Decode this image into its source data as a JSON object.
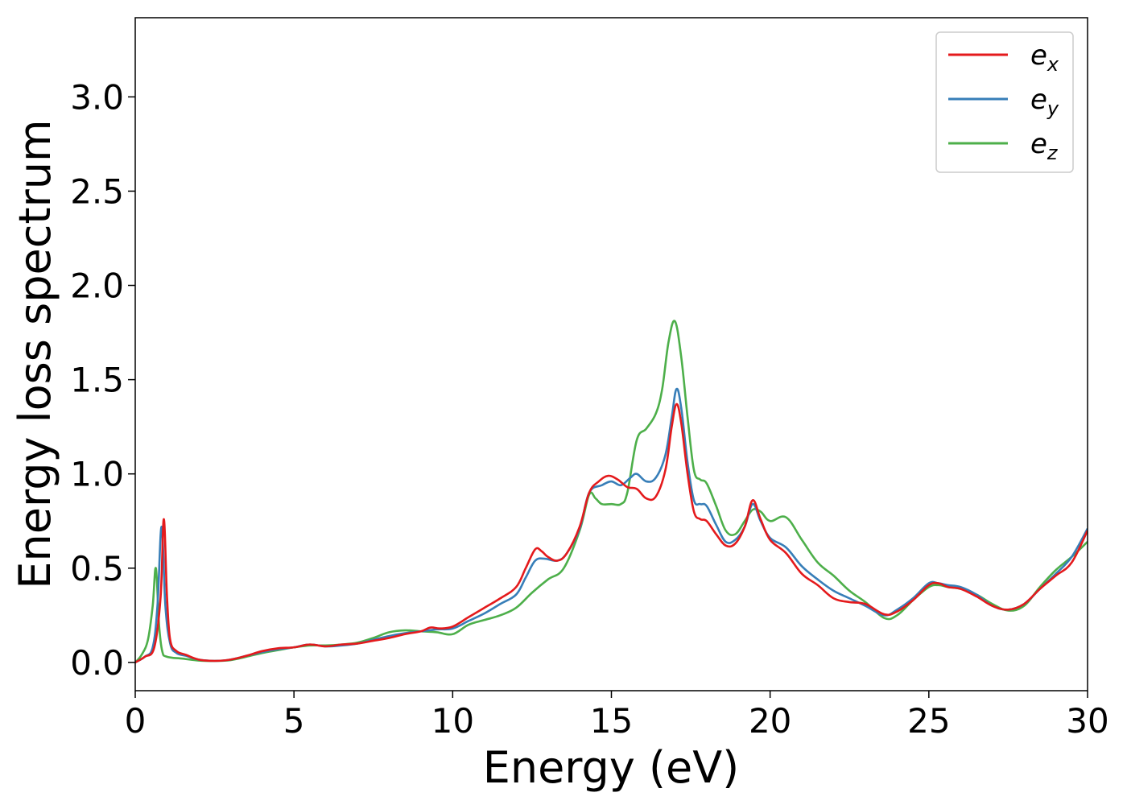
{
  "chart_data": {
    "type": "line",
    "xlabel": "Energy (eV)",
    "ylabel": "Energy loss spectrum",
    "xlim": [
      0,
      30
    ],
    "ylim": [
      -0.15,
      3.42
    ],
    "xticks": [
      0,
      5,
      10,
      15,
      20,
      25,
      30
    ],
    "xtick_labels": [
      "0",
      "5",
      "10",
      "15",
      "20",
      "25",
      "30"
    ],
    "yticks": [
      0.0,
      0.5,
      1.0,
      1.5,
      2.0,
      2.5,
      3.0
    ],
    "ytick_labels": [
      "0.0",
      "0.5",
      "1.0",
      "1.5",
      "2.0",
      "2.5",
      "3.0"
    ],
    "grid": false,
    "legend_position": "top-right",
    "series": [
      {
        "name": "e",
        "subscript": "x",
        "color": "#e41a1c",
        "points": [
          [
            0,
            0
          ],
          [
            0.3,
            0.03
          ],
          [
            0.6,
            0.08
          ],
          [
            0.8,
            0.35
          ],
          [
            0.9,
            0.76
          ],
          [
            1.0,
            0.35
          ],
          [
            1.1,
            0.12
          ],
          [
            1.3,
            0.06
          ],
          [
            1.6,
            0.04
          ],
          [
            2,
            0.015
          ],
          [
            2.5,
            0.008
          ],
          [
            3,
            0.015
          ],
          [
            3.5,
            0.035
          ],
          [
            4,
            0.06
          ],
          [
            4.5,
            0.075
          ],
          [
            5,
            0.08
          ],
          [
            5.5,
            0.095
          ],
          [
            6,
            0.085
          ],
          [
            6.5,
            0.095
          ],
          [
            7,
            0.1
          ],
          [
            7.5,
            0.115
          ],
          [
            8,
            0.13
          ],
          [
            8.5,
            0.15
          ],
          [
            9,
            0.165
          ],
          [
            9.3,
            0.185
          ],
          [
            9.6,
            0.18
          ],
          [
            10,
            0.19
          ],
          [
            10.5,
            0.24
          ],
          [
            11,
            0.29
          ],
          [
            11.5,
            0.34
          ],
          [
            12,
            0.4
          ],
          [
            12.3,
            0.5
          ],
          [
            12.6,
            0.6
          ],
          [
            12.8,
            0.59
          ],
          [
            13,
            0.56
          ],
          [
            13.3,
            0.54
          ],
          [
            13.6,
            0.58
          ],
          [
            14,
            0.72
          ],
          [
            14.3,
            0.9
          ],
          [
            14.6,
            0.96
          ],
          [
            14.9,
            0.99
          ],
          [
            15.2,
            0.97
          ],
          [
            15.5,
            0.93
          ],
          [
            15.8,
            0.92
          ],
          [
            16.1,
            0.87
          ],
          [
            16.4,
            0.88
          ],
          [
            16.7,
            1.02
          ],
          [
            16.9,
            1.25
          ],
          [
            17.05,
            1.37
          ],
          [
            17.2,
            1.27
          ],
          [
            17.4,
            1.0
          ],
          [
            17.6,
            0.8
          ],
          [
            17.8,
            0.76
          ],
          [
            18.0,
            0.75
          ],
          [
            18.3,
            0.68
          ],
          [
            18.6,
            0.62
          ],
          [
            18.9,
            0.63
          ],
          [
            19.2,
            0.72
          ],
          [
            19.45,
            0.86
          ],
          [
            19.7,
            0.76
          ],
          [
            20,
            0.65
          ],
          [
            20.5,
            0.58
          ],
          [
            21,
            0.47
          ],
          [
            21.5,
            0.41
          ],
          [
            22,
            0.34
          ],
          [
            22.5,
            0.32
          ],
          [
            23,
            0.31
          ],
          [
            23.6,
            0.255
          ],
          [
            24,
            0.27
          ],
          [
            24.5,
            0.33
          ],
          [
            25,
            0.41
          ],
          [
            25.3,
            0.42
          ],
          [
            25.6,
            0.4
          ],
          [
            26,
            0.39
          ],
          [
            26.5,
            0.35
          ],
          [
            27,
            0.3
          ],
          [
            27.5,
            0.28
          ],
          [
            28,
            0.31
          ],
          [
            28.5,
            0.39
          ],
          [
            29,
            0.46
          ],
          [
            29.5,
            0.53
          ],
          [
            30,
            0.7
          ]
        ]
      },
      {
        "name": "e",
        "subscript": "y",
        "color": "#377eb8",
        "points": [
          [
            0,
            0
          ],
          [
            0.3,
            0.03
          ],
          [
            0.55,
            0.08
          ],
          [
            0.7,
            0.3
          ],
          [
            0.83,
            0.72
          ],
          [
            0.95,
            0.3
          ],
          [
            1.1,
            0.1
          ],
          [
            1.3,
            0.05
          ],
          [
            1.6,
            0.035
          ],
          [
            2,
            0.015
          ],
          [
            2.5,
            0.008
          ],
          [
            3,
            0.015
          ],
          [
            3.5,
            0.035
          ],
          [
            4,
            0.055
          ],
          [
            4.5,
            0.07
          ],
          [
            5,
            0.08
          ],
          [
            5.5,
            0.095
          ],
          [
            6,
            0.085
          ],
          [
            6.5,
            0.09
          ],
          [
            7,
            0.1
          ],
          [
            7.5,
            0.12
          ],
          [
            8,
            0.14
          ],
          [
            8.5,
            0.155
          ],
          [
            9,
            0.165
          ],
          [
            9.5,
            0.175
          ],
          [
            10,
            0.18
          ],
          [
            10.5,
            0.22
          ],
          [
            11,
            0.26
          ],
          [
            11.5,
            0.31
          ],
          [
            12,
            0.36
          ],
          [
            12.3,
            0.45
          ],
          [
            12.6,
            0.54
          ],
          [
            12.9,
            0.55
          ],
          [
            13.3,
            0.54
          ],
          [
            13.6,
            0.58
          ],
          [
            14,
            0.71
          ],
          [
            14.3,
            0.9
          ],
          [
            14.7,
            0.94
          ],
          [
            15,
            0.96
          ],
          [
            15.3,
            0.94
          ],
          [
            15.6,
            0.98
          ],
          [
            15.8,
            1.0
          ],
          [
            16.1,
            0.96
          ],
          [
            16.4,
            0.98
          ],
          [
            16.7,
            1.1
          ],
          [
            16.9,
            1.3
          ],
          [
            17.05,
            1.45
          ],
          [
            17.2,
            1.35
          ],
          [
            17.4,
            1.06
          ],
          [
            17.6,
            0.86
          ],
          [
            17.8,
            0.84
          ],
          [
            18.0,
            0.83
          ],
          [
            18.3,
            0.73
          ],
          [
            18.6,
            0.64
          ],
          [
            18.9,
            0.65
          ],
          [
            19.2,
            0.72
          ],
          [
            19.45,
            0.84
          ],
          [
            19.7,
            0.75
          ],
          [
            20,
            0.66
          ],
          [
            20.5,
            0.61
          ],
          [
            21,
            0.51
          ],
          [
            21.5,
            0.44
          ],
          [
            22,
            0.38
          ],
          [
            22.5,
            0.34
          ],
          [
            23,
            0.3
          ],
          [
            23.6,
            0.25
          ],
          [
            24,
            0.28
          ],
          [
            24.5,
            0.34
          ],
          [
            25,
            0.42
          ],
          [
            25.3,
            0.42
          ],
          [
            25.6,
            0.41
          ],
          [
            26,
            0.4
          ],
          [
            26.5,
            0.36
          ],
          [
            27,
            0.3
          ],
          [
            27.5,
            0.28
          ],
          [
            28,
            0.31
          ],
          [
            28.5,
            0.39
          ],
          [
            29,
            0.47
          ],
          [
            29.5,
            0.56
          ],
          [
            30,
            0.71
          ]
        ]
      },
      {
        "name": "e",
        "subscript": "z",
        "color": "#4daf4a",
        "points": [
          [
            0,
            0
          ],
          [
            0.2,
            0.04
          ],
          [
            0.4,
            0.12
          ],
          [
            0.55,
            0.3
          ],
          [
            0.65,
            0.5
          ],
          [
            0.75,
            0.2
          ],
          [
            0.85,
            0.06
          ],
          [
            1.0,
            0.03
          ],
          [
            1.5,
            0.02
          ],
          [
            2,
            0.01
          ],
          [
            2.5,
            0.008
          ],
          [
            3,
            0.012
          ],
          [
            3.5,
            0.03
          ],
          [
            4,
            0.05
          ],
          [
            4.5,
            0.065
          ],
          [
            5,
            0.08
          ],
          [
            5.5,
            0.09
          ],
          [
            6,
            0.09
          ],
          [
            6.5,
            0.095
          ],
          [
            7,
            0.105
          ],
          [
            7.5,
            0.13
          ],
          [
            8,
            0.16
          ],
          [
            8.5,
            0.17
          ],
          [
            9,
            0.165
          ],
          [
            9.5,
            0.16
          ],
          [
            10,
            0.15
          ],
          [
            10.5,
            0.2
          ],
          [
            11,
            0.225
          ],
          [
            11.5,
            0.25
          ],
          [
            12,
            0.29
          ],
          [
            12.5,
            0.37
          ],
          [
            13,
            0.44
          ],
          [
            13.5,
            0.5
          ],
          [
            14,
            0.7
          ],
          [
            14.3,
            0.89
          ],
          [
            14.5,
            0.87
          ],
          [
            14.7,
            0.84
          ],
          [
            15,
            0.84
          ],
          [
            15.3,
            0.84
          ],
          [
            15.5,
            0.9
          ],
          [
            15.8,
            1.18
          ],
          [
            16.1,
            1.24
          ],
          [
            16.4,
            1.32
          ],
          [
            16.6,
            1.45
          ],
          [
            16.8,
            1.7
          ],
          [
            17.0,
            1.81
          ],
          [
            17.2,
            1.62
          ],
          [
            17.4,
            1.3
          ],
          [
            17.6,
            1.02
          ],
          [
            17.8,
            0.97
          ],
          [
            18.0,
            0.95
          ],
          [
            18.3,
            0.83
          ],
          [
            18.6,
            0.7
          ],
          [
            18.9,
            0.68
          ],
          [
            19.2,
            0.75
          ],
          [
            19.45,
            0.81
          ],
          [
            19.7,
            0.8
          ],
          [
            20,
            0.75
          ],
          [
            20.5,
            0.77
          ],
          [
            21,
            0.65
          ],
          [
            21.5,
            0.53
          ],
          [
            22,
            0.46
          ],
          [
            22.5,
            0.38
          ],
          [
            23,
            0.32
          ],
          [
            23.6,
            0.235
          ],
          [
            24,
            0.25
          ],
          [
            24.5,
            0.33
          ],
          [
            25,
            0.4
          ],
          [
            25.3,
            0.41
          ],
          [
            25.6,
            0.4
          ],
          [
            26,
            0.39
          ],
          [
            26.5,
            0.36
          ],
          [
            27,
            0.31
          ],
          [
            27.5,
            0.275
          ],
          [
            28,
            0.3
          ],
          [
            28.5,
            0.4
          ],
          [
            29,
            0.49
          ],
          [
            29.5,
            0.56
          ],
          [
            30,
            0.64
          ]
        ]
      }
    ]
  }
}
